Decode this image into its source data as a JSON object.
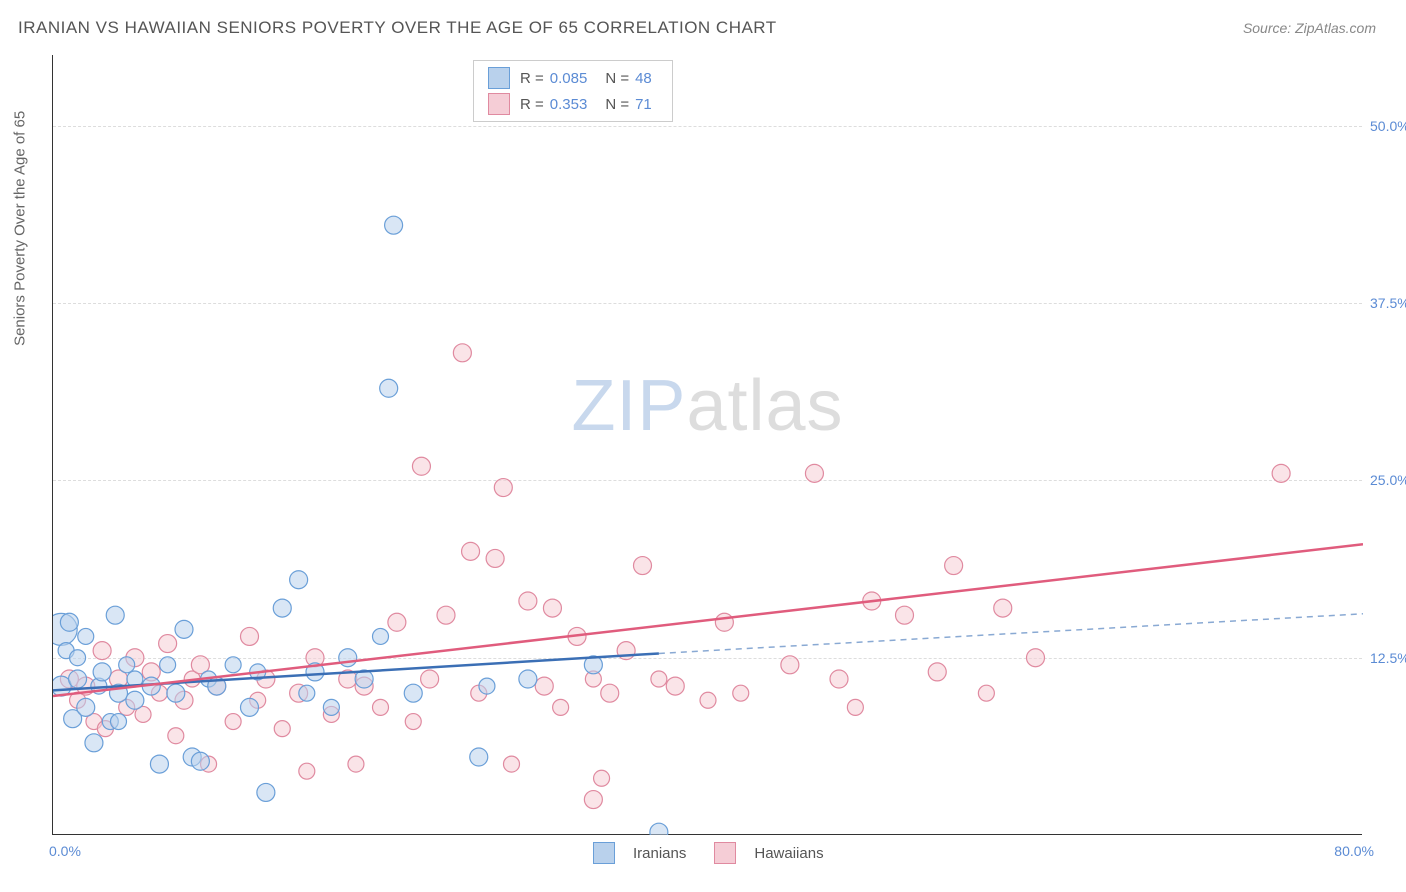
{
  "title": "IRANIAN VS HAWAIIAN SENIORS POVERTY OVER THE AGE OF 65 CORRELATION CHART",
  "source_label": "Source: ",
  "source_name": "ZipAtlas.com",
  "ylabel": "Seniors Poverty Over the Age of 65",
  "watermark_zip": "ZIP",
  "watermark_atlas": "atlas",
  "chart": {
    "type": "scatter",
    "xlim": [
      0,
      80
    ],
    "ylim": [
      0,
      55
    ],
    "y_ticks": [
      12.5,
      25.0,
      37.5,
      50.0
    ],
    "y_tick_labels": [
      "12.5%",
      "25.0%",
      "37.5%",
      "50.0%"
    ],
    "x_tick_min": "0.0%",
    "x_tick_max": "80.0%",
    "background_color": "#ffffff",
    "grid_color": "#dddddd",
    "axis_color": "#333333",
    "tick_label_color": "#5b8bd4"
  },
  "series": {
    "iranians": {
      "label": "Iranians",
      "fill": "#b9d1ec",
      "stroke": "#6a9fd8",
      "fill_opacity": 0.55,
      "trend_color": "#3b6fb5",
      "trend_start": [
        0,
        10.2
      ],
      "trend_end_solid": [
        37,
        12.8
      ],
      "trend_end_dash": [
        80,
        15.6
      ],
      "R": "0.085",
      "N": "48",
      "points": [
        [
          0.5,
          14.5,
          16
        ],
        [
          0.5,
          10.5,
          10
        ],
        [
          0.8,
          13.0,
          8
        ],
        [
          1.0,
          15.0,
          9
        ],
        [
          1.2,
          8.2,
          9
        ],
        [
          1.5,
          11.0,
          9
        ],
        [
          1.5,
          12.5,
          8
        ],
        [
          2.0,
          9.0,
          9
        ],
        [
          2.0,
          14.0,
          8
        ],
        [
          2.5,
          6.5,
          9
        ],
        [
          2.8,
          10.5,
          8
        ],
        [
          3.0,
          11.5,
          9
        ],
        [
          3.5,
          8.0,
          8
        ],
        [
          4.0,
          10.0,
          9
        ],
        [
          3.8,
          15.5,
          9
        ],
        [
          4.5,
          12.0,
          8
        ],
        [
          5.0,
          9.5,
          9
        ],
        [
          5.0,
          11.0,
          8
        ],
        [
          6.0,
          10.5,
          9
        ],
        [
          6.5,
          5.0,
          9
        ],
        [
          7.0,
          12.0,
          8
        ],
        [
          7.5,
          10.0,
          9
        ],
        [
          8.0,
          14.5,
          9
        ],
        [
          8.5,
          5.5,
          9
        ],
        [
          9.0,
          5.2,
          9
        ],
        [
          9.5,
          11.0,
          8
        ],
        [
          10.0,
          10.5,
          9
        ],
        [
          11.0,
          12.0,
          8
        ],
        [
          12.0,
          9.0,
          9
        ],
        [
          12.5,
          11.5,
          8
        ],
        [
          13.0,
          3.0,
          9
        ],
        [
          14.0,
          16.0,
          9
        ],
        [
          15.0,
          18.0,
          9
        ],
        [
          15.5,
          10.0,
          8
        ],
        [
          16.0,
          11.5,
          9
        ],
        [
          17.0,
          9.0,
          8
        ],
        [
          18.0,
          12.5,
          9
        ],
        [
          19.0,
          11.0,
          9
        ],
        [
          20.0,
          14.0,
          8
        ],
        [
          20.5,
          31.5,
          9
        ],
        [
          20.8,
          43.0,
          9
        ],
        [
          22.0,
          10.0,
          9
        ],
        [
          26.0,
          5.5,
          9
        ],
        [
          26.5,
          10.5,
          8
        ],
        [
          29.0,
          11.0,
          9
        ],
        [
          33.0,
          12.0,
          9
        ],
        [
          37.0,
          0.2,
          9
        ],
        [
          4.0,
          8.0,
          8
        ]
      ]
    },
    "hawaiians": {
      "label": "Hawaiians",
      "fill": "#f5cdd6",
      "stroke": "#e08aa0",
      "fill_opacity": 0.55,
      "trend_color": "#e05c7d",
      "trend_start": [
        0,
        9.8
      ],
      "trend_end": [
        80,
        20.5
      ],
      "R": "0.353",
      "N": "71",
      "points": [
        [
          1.0,
          11.0,
          9
        ],
        [
          1.5,
          9.5,
          8
        ],
        [
          2.0,
          10.5,
          9
        ],
        [
          2.5,
          8.0,
          8
        ],
        [
          3.0,
          13.0,
          9
        ],
        [
          3.2,
          7.5,
          8
        ],
        [
          4.0,
          11.0,
          9
        ],
        [
          4.5,
          9.0,
          8
        ],
        [
          5.0,
          12.5,
          9
        ],
        [
          5.5,
          8.5,
          8
        ],
        [
          6.0,
          11.5,
          9
        ],
        [
          6.5,
          10.0,
          8
        ],
        [
          7.0,
          13.5,
          9
        ],
        [
          7.5,
          7.0,
          8
        ],
        [
          8.0,
          9.5,
          9
        ],
        [
          8.5,
          11.0,
          8
        ],
        [
          9.0,
          12.0,
          9
        ],
        [
          9.5,
          5.0,
          8
        ],
        [
          10.0,
          10.5,
          9
        ],
        [
          11.0,
          8.0,
          8
        ],
        [
          12.0,
          14.0,
          9
        ],
        [
          12.5,
          9.5,
          8
        ],
        [
          13.0,
          11.0,
          9
        ],
        [
          14.0,
          7.5,
          8
        ],
        [
          15.0,
          10.0,
          9
        ],
        [
          15.5,
          4.5,
          8
        ],
        [
          16.0,
          12.5,
          9
        ],
        [
          17.0,
          8.5,
          8
        ],
        [
          18.0,
          11.0,
          9
        ],
        [
          18.5,
          5.0,
          8
        ],
        [
          19.0,
          10.5,
          9
        ],
        [
          20.0,
          9.0,
          8
        ],
        [
          21.0,
          15.0,
          9
        ],
        [
          22.0,
          8.0,
          8
        ],
        [
          22.5,
          26.0,
          9
        ],
        [
          23.0,
          11.0,
          9
        ],
        [
          24.0,
          15.5,
          9
        ],
        [
          25.0,
          34.0,
          9
        ],
        [
          25.5,
          20.0,
          9
        ],
        [
          26.0,
          10.0,
          8
        ],
        [
          27.0,
          19.5,
          9
        ],
        [
          27.5,
          24.5,
          9
        ],
        [
          28.0,
          5.0,
          8
        ],
        [
          29.0,
          16.5,
          9
        ],
        [
          30.0,
          10.5,
          9
        ],
        [
          30.5,
          16.0,
          9
        ],
        [
          31.0,
          9.0,
          8
        ],
        [
          32.0,
          14.0,
          9
        ],
        [
          33.0,
          11.0,
          8
        ],
        [
          33.0,
          2.5,
          9
        ],
        [
          34.0,
          10.0,
          9
        ],
        [
          35.0,
          13.0,
          9
        ],
        [
          36.0,
          19.0,
          9
        ],
        [
          37.0,
          11.0,
          8
        ],
        [
          38.0,
          10.5,
          9
        ],
        [
          40.0,
          9.5,
          8
        ],
        [
          41.0,
          15.0,
          9
        ],
        [
          42.0,
          10.0,
          8
        ],
        [
          45.0,
          12.0,
          9
        ],
        [
          46.5,
          25.5,
          9
        ],
        [
          48.0,
          11.0,
          9
        ],
        [
          49.0,
          9.0,
          8
        ],
        [
          50.0,
          16.5,
          9
        ],
        [
          52.0,
          15.5,
          9
        ],
        [
          54.0,
          11.5,
          9
        ],
        [
          55.0,
          19.0,
          9
        ],
        [
          57.0,
          10.0,
          8
        ],
        [
          58.0,
          16.0,
          9
        ],
        [
          60.0,
          12.5,
          9
        ],
        [
          75.0,
          25.5,
          9
        ],
        [
          33.5,
          4.0,
          8
        ]
      ]
    }
  },
  "legend_top": {
    "r_label": "R = ",
    "n_label": "N = "
  }
}
